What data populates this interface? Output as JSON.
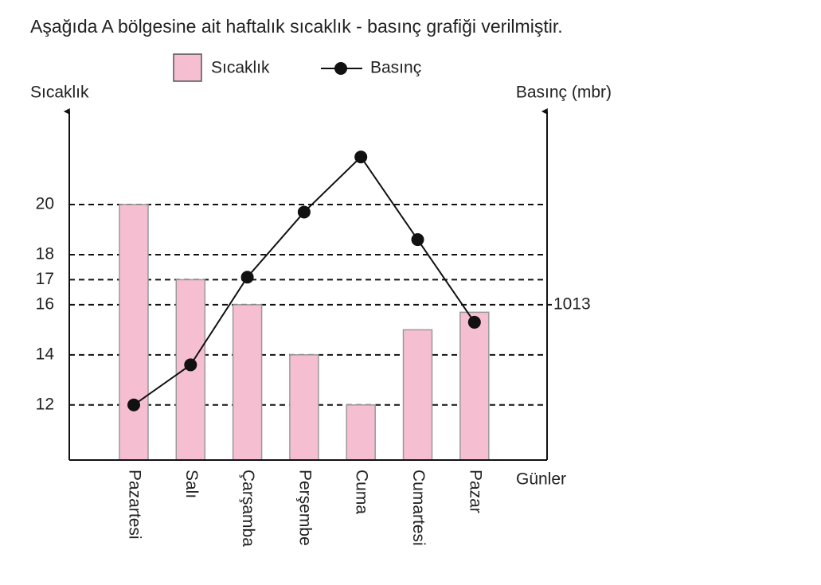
{
  "chart_data": {
    "type": "combo",
    "title": "Aşağıda A bölgesine ait haftalık sıcaklık - basınç grafiği verilmiştir.",
    "y_label": "Sıcaklık",
    "y2_label": "Basınç (mbr)",
    "x_label": "Günler",
    "categories": [
      "Pazartesi",
      "Salı",
      "Çarşamba",
      "Perşembe",
      "Cuma",
      "Cumartesi",
      "Pazar"
    ],
    "series": [
      {
        "name": "Sıcaklık",
        "type": "bar",
        "color": "#f5bfd1",
        "values": [
          20,
          17,
          16,
          14,
          12,
          15,
          15.7
        ]
      },
      {
        "name": "Basınç",
        "type": "line",
        "axis": "y2",
        "color": "#111111",
        "values": [
          1009,
          1010.6,
          1014.1,
          1016.7,
          1018.9,
          1015.6,
          1012.3
        ]
      }
    ],
    "ylim": [
      9.8,
      23.4
    ],
    "yticks": [
      12,
      14,
      16,
      17,
      18,
      20
    ],
    "y2lim": [
      1006.8,
      1020.4
    ],
    "y2ticks": [
      1013
    ],
    "grid": true,
    "legend": "top"
  }
}
